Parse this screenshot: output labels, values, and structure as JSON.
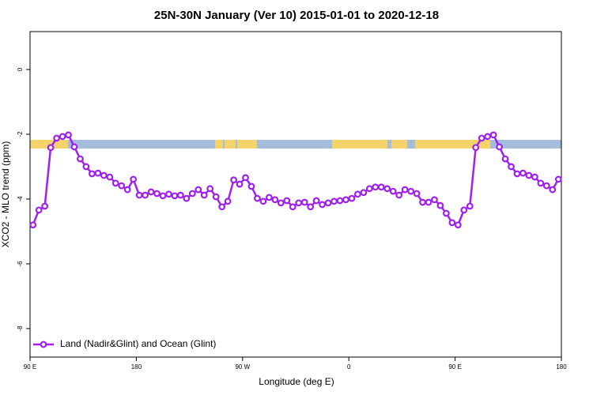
{
  "chart_data": {
    "type": "line",
    "title": "25N-30N January (Ver 10)   2015-01-01 to 2020-12-18",
    "x_label": "Longitude (deg E)",
    "y_label": "XCO2 - MLO trend (ppm)",
    "x": [
      92.5,
      97.5,
      102.5,
      107.5,
      112.5,
      117.5,
      122.5,
      127.5,
      132.5,
      137.5,
      142.5,
      147.5,
      152.5,
      157.5,
      162.5,
      167.5,
      172.5,
      177.5,
      182.5,
      187.5,
      192.5,
      197.5,
      202.5,
      207.5,
      212.5,
      217.5,
      222.5,
      227.5,
      232.5,
      237.5,
      242.5,
      247.5,
      252.5,
      257.5,
      262.5,
      267.5,
      272.5,
      277.5,
      282.5,
      287.5,
      292.5,
      297.5,
      302.5,
      307.5,
      312.5,
      317.5,
      322.5,
      327.5,
      332.5,
      337.5,
      342.5,
      347.5,
      352.5,
      357.5,
      362.5,
      367.5,
      372.5,
      377.5,
      382.5,
      387.5,
      392.5,
      397.5,
      402.5,
      407.5,
      412.5,
      417.5,
      422.5,
      427.5,
      432.5,
      437.5,
      442.5,
      447.5,
      452.5,
      457.5,
      462.5,
      467.5,
      472.5,
      477.5,
      482.5,
      487.5,
      492.5,
      497.5,
      502.5,
      507.5,
      512.5,
      517.5,
      522.5,
      527.5,
      532.5,
      537.5
    ],
    "series": [
      {
        "name": "Land (Nadir&Glint) and Ocean (Glint)",
        "color": "#a020f0",
        "values": [
          -4.8,
          -4.34,
          -4.22,
          -2.41,
          -2.12,
          -2.07,
          -2.02,
          -2.39,
          -2.76,
          -3.0,
          -3.22,
          -3.2,
          -3.27,
          -3.32,
          -3.51,
          -3.59,
          -3.71,
          -3.39,
          -3.88,
          -3.88,
          -3.78,
          -3.83,
          -3.9,
          -3.85,
          -3.9,
          -3.88,
          -3.98,
          -3.83,
          -3.71,
          -3.88,
          -3.68,
          -3.93,
          -4.24,
          -4.07,
          -3.41,
          -3.54,
          -3.34,
          -3.61,
          -3.98,
          -4.07,
          -3.95,
          -4.02,
          -4.12,
          -4.05,
          -4.24,
          -4.12,
          -4.1,
          -4.24,
          -4.05,
          -4.17,
          -4.12,
          -4.07,
          -4.05,
          -4.02,
          -3.98,
          -3.85,
          -3.8,
          -3.68,
          -3.63,
          -3.63,
          -3.68,
          -3.76,
          -3.88,
          -3.71,
          -3.76,
          -3.83,
          -4.1,
          -4.1,
          -4.02,
          -4.2,
          -4.44,
          -4.73,
          -4.8,
          -4.34,
          -4.22,
          -2.41,
          -2.12,
          -2.07,
          -2.02,
          -2.39,
          -2.76,
          -3.0,
          -3.22,
          -3.2,
          -3.27,
          -3.32,
          -3.51,
          -3.59,
          -3.71,
          -3.39
        ]
      }
    ],
    "xlim": [
      90,
      540
    ],
    "xticks": [
      {
        "value": 90,
        "label": "90 E"
      },
      {
        "value": 180,
        "label": "180"
      },
      {
        "value": 270,
        "label": "90 W"
      },
      {
        "value": 360,
        "label": "0"
      },
      {
        "value": 450,
        "label": "90 E"
      },
      {
        "value": 540,
        "label": "180"
      }
    ],
    "ylim": [
      -8.88,
      1.17
    ],
    "yticks": [
      0,
      -2,
      -4,
      -6,
      -8
    ],
    "legend": "bottomleft"
  }
}
